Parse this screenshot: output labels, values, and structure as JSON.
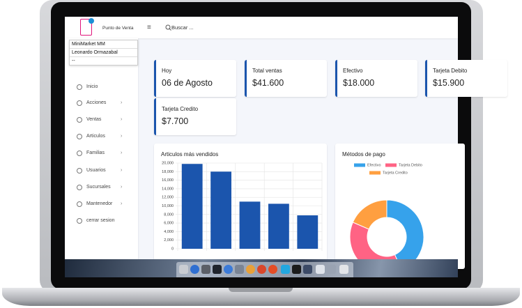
{
  "header": {
    "app_name": "Punto de Venta",
    "search_placeholder": "Buscar ..."
  },
  "user_box": [
    "MiniMarket MM",
    "Leonardo Ormazabal",
    "--"
  ],
  "menu": [
    "Inicio",
    "Acciones",
    "Ventas",
    "Articulos",
    "Familias",
    "Usuarios",
    "Sucursales",
    "Mantenedor",
    "cerrar sesion"
  ],
  "cards": [
    {
      "label": "Hoy",
      "value": "06 de Agosto"
    },
    {
      "label": "Total ventas",
      "value": "$41.600"
    },
    {
      "label": "Efectivo",
      "value": "$18.000"
    },
    {
      "label": "Tarjeta Debito",
      "value": "$15.900"
    },
    {
      "label": "Tarjeta Credito",
      "value": "$7.700"
    }
  ],
  "bar_chart": {
    "type": "bar",
    "title": "Articulos más vendidos",
    "values": [
      19800,
      18000,
      11000,
      10500,
      7800
    ],
    "color": "#1b55ad",
    "ylim": [
      0,
      20000
    ],
    "yticks": [
      0,
      {
        "value": 2000,
        "label": "2,000"
      },
      {
        "value": 4000,
        "label": "4,000"
      },
      {
        "value": 6000,
        "label": "6,000"
      },
      {
        "value": 8000,
        "label": "8,000"
      },
      {
        "value": 10000,
        "label": "10,000"
      },
      {
        "value": 12000,
        "label": "12,000"
      },
      {
        "value": 14000,
        "label": "14,000"
      },
      {
        "value": 16000,
        "label": "16,000"
      },
      {
        "value": 18000,
        "label": "18,000"
      },
      {
        "value": 20000,
        "label": "20,000"
      }
    ],
    "grid": true
  },
  "donut_chart": {
    "type": "doughnut",
    "title": "Métodos de pago",
    "categories": [
      "Efectivo",
      "Tarjeta Debito",
      "Tarjeta Credito"
    ],
    "values": [
      18000,
      15900,
      7700
    ],
    "colors": [
      "#36a2eb",
      "#ff6384",
      "#ff9f40"
    ]
  }
}
